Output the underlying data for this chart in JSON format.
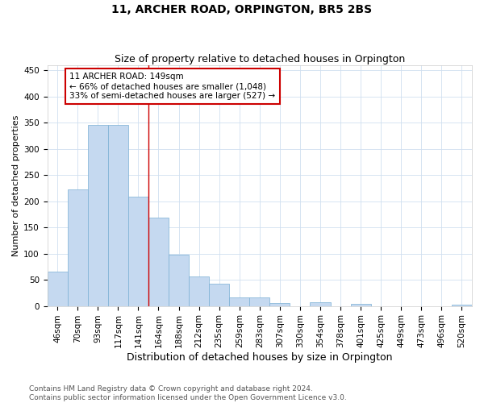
{
  "title": "11, ARCHER ROAD, ORPINGTON, BR5 2BS",
  "subtitle": "Size of property relative to detached houses in Orpington",
  "xlabel": "Distribution of detached houses by size in Orpington",
  "ylabel": "Number of detached properties",
  "categories": [
    "46sqm",
    "70sqm",
    "93sqm",
    "117sqm",
    "141sqm",
    "164sqm",
    "188sqm",
    "212sqm",
    "235sqm",
    "259sqm",
    "283sqm",
    "307sqm",
    "330sqm",
    "354sqm",
    "378sqm",
    "401sqm",
    "425sqm",
    "449sqm",
    "473sqm",
    "496sqm",
    "520sqm"
  ],
  "values": [
    65,
    222,
    345,
    345,
    209,
    168,
    98,
    57,
    42,
    16,
    16,
    5,
    0,
    7,
    0,
    4,
    0,
    0,
    0,
    0,
    2
  ],
  "bar_color": "#c5d9f0",
  "bar_edge_color": "#7bafd4",
  "grid_color": "#d0dff0",
  "vline_color": "#cc0000",
  "vline_x_idx": 4,
  "annotation_text": "11 ARCHER ROAD: 149sqm\n← 66% of detached houses are smaller (1,048)\n33% of semi-detached houses are larger (527) →",
  "annotation_box_color": "white",
  "annotation_box_edge_color": "#cc0000",
  "ylim": [
    0,
    460
  ],
  "yticks": [
    0,
    50,
    100,
    150,
    200,
    250,
    300,
    350,
    400,
    450
  ],
  "footer_line1": "Contains HM Land Registry data © Crown copyright and database right 2024.",
  "footer_line2": "Contains public sector information licensed under the Open Government Licence v3.0.",
  "title_fontsize": 10,
  "subtitle_fontsize": 9,
  "xlabel_fontsize": 9,
  "ylabel_fontsize": 8,
  "tick_fontsize": 7.5,
  "annotation_fontsize": 7.5,
  "footer_fontsize": 6.5
}
